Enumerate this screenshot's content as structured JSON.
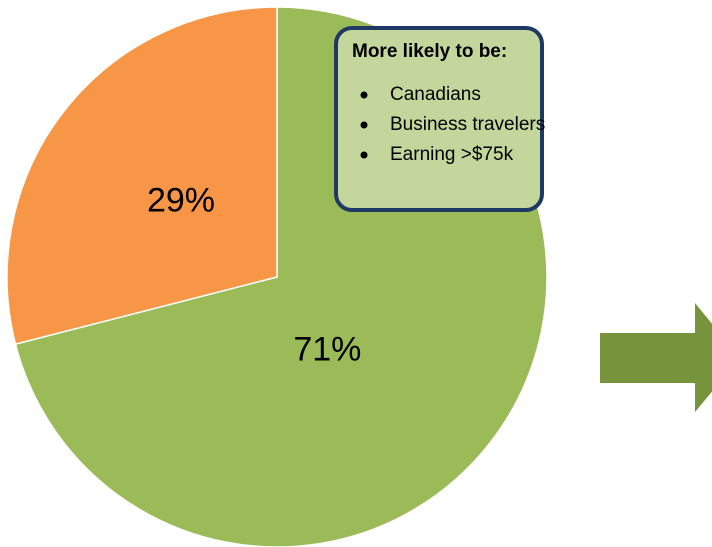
{
  "chart_data": {
    "type": "pie",
    "values": [
      71,
      29
    ],
    "value_labels": [
      "71%",
      "29%"
    ],
    "colors": [
      "#9bbb59",
      "#f79646"
    ],
    "annotation": {
      "title": "More likely to be:",
      "items": [
        "Canadians",
        "Business travelers",
        "Earning >$75k"
      ]
    }
  }
}
